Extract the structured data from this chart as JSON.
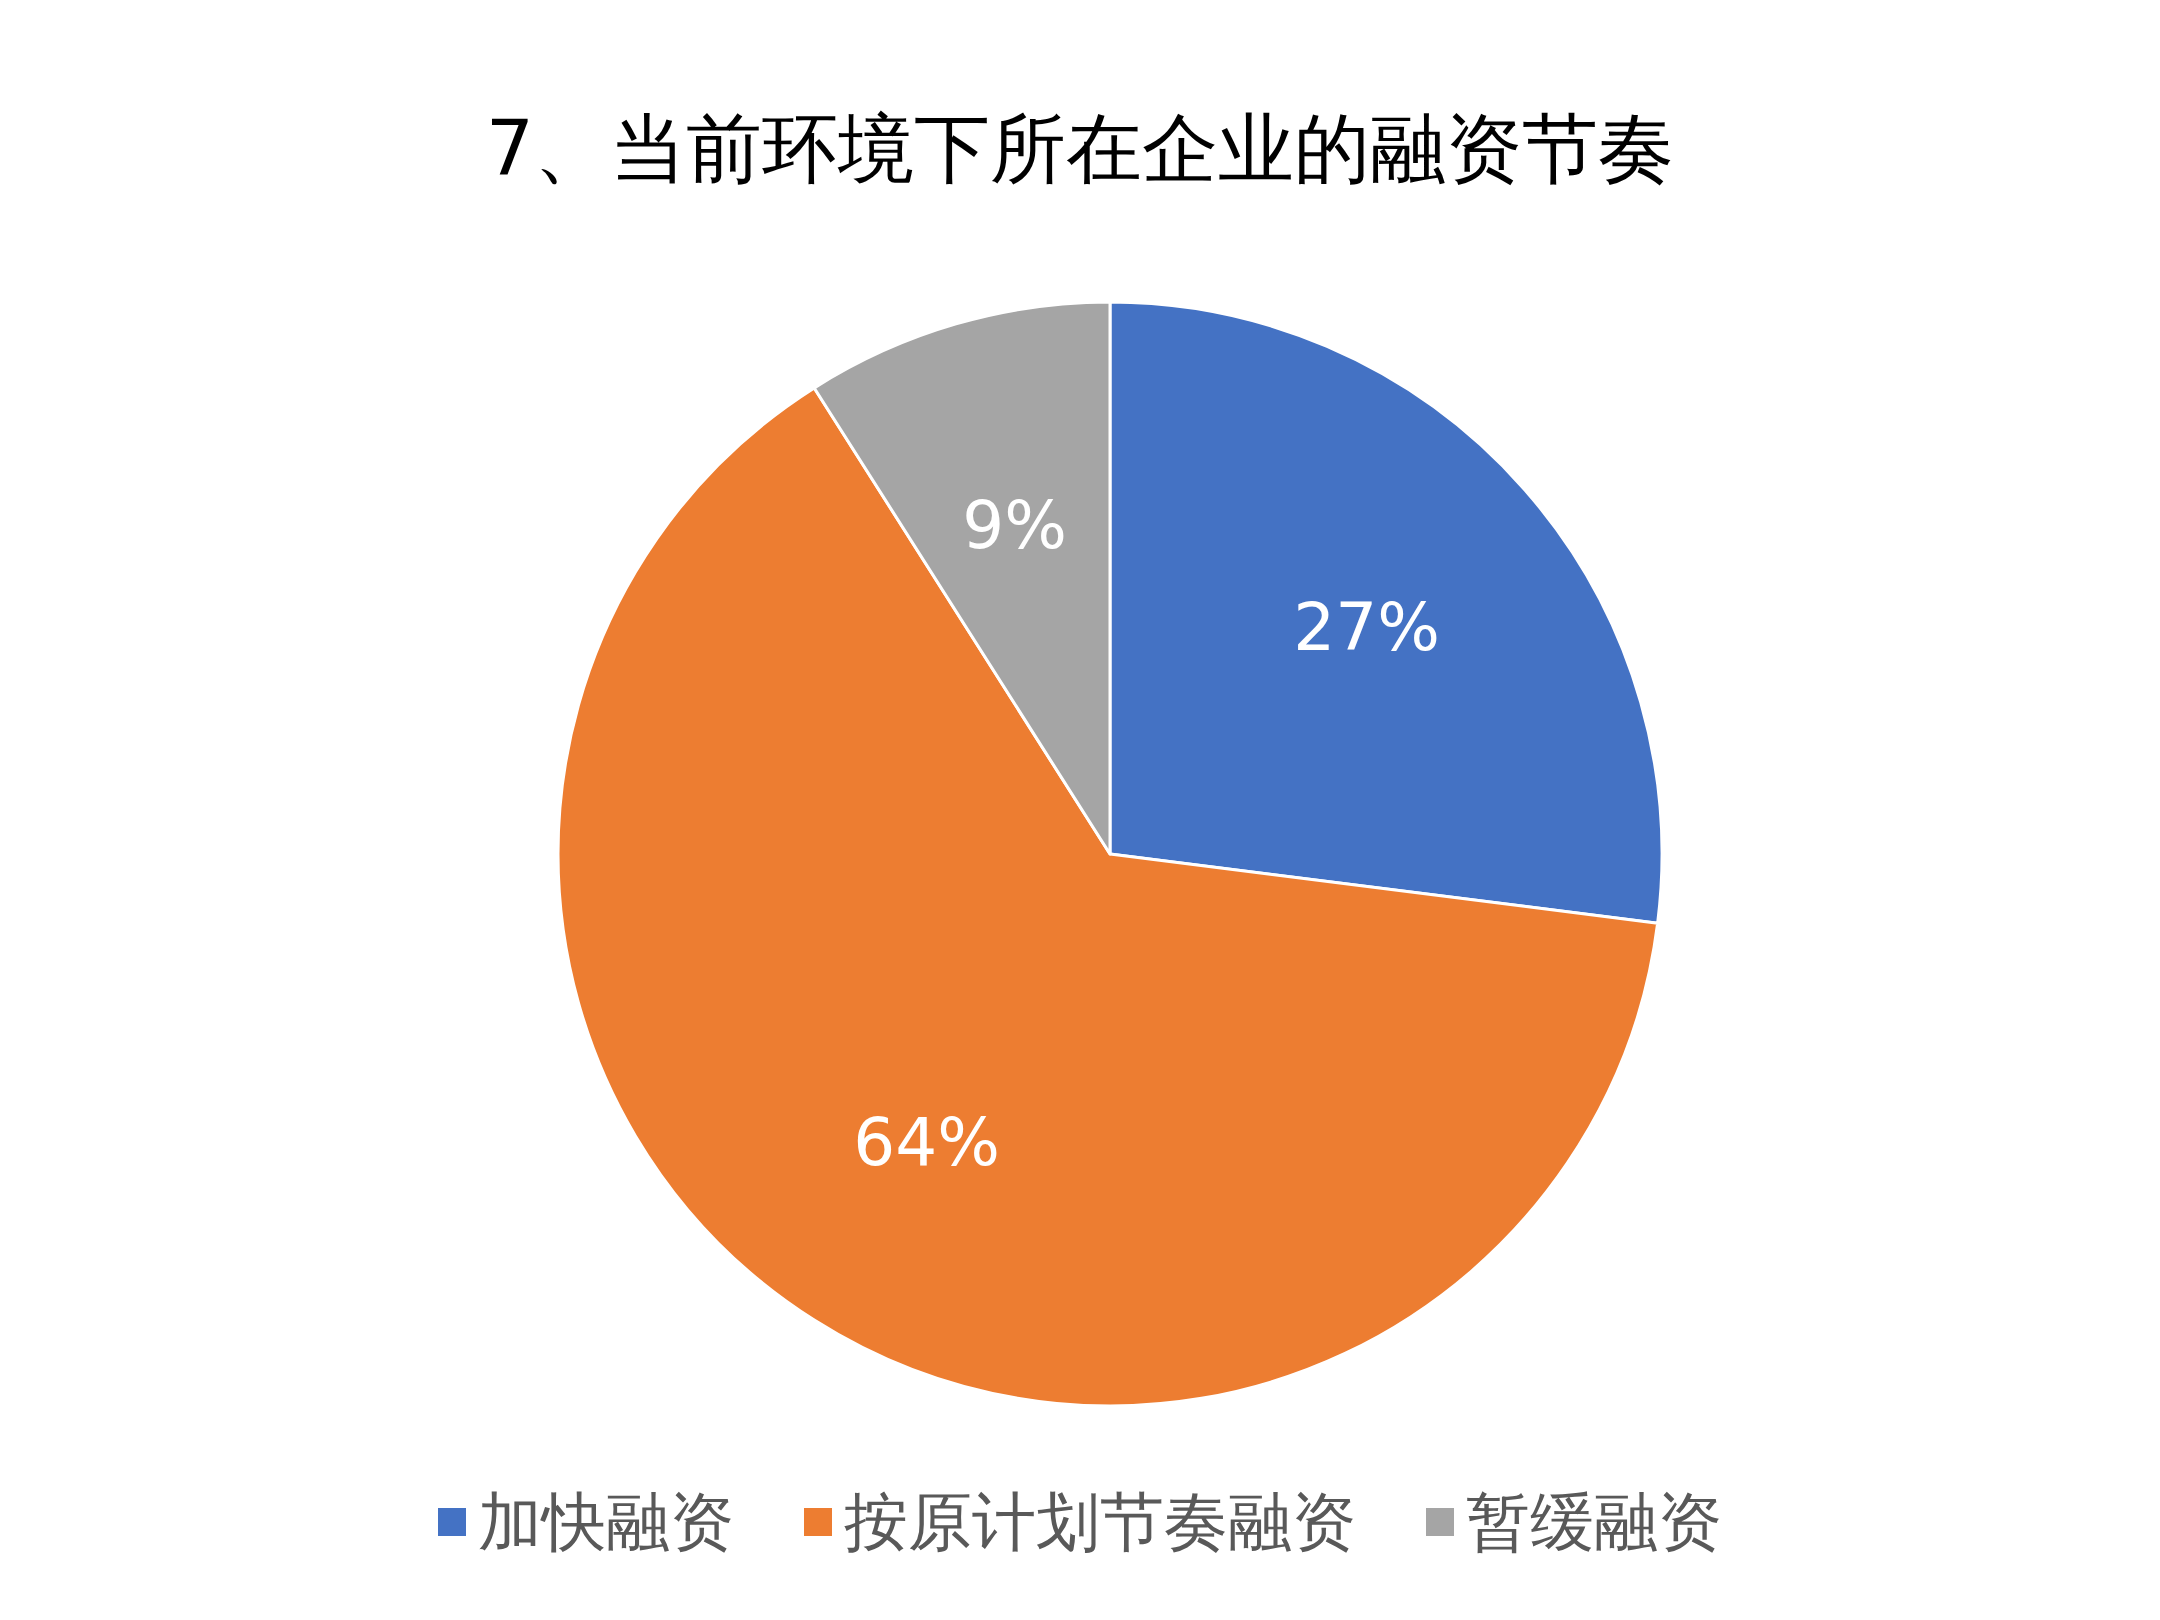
{
  "chart_data": {
    "type": "pie",
    "title": "7、当前环境下所在企业的融资节奏",
    "categories": [
      "加快融资",
      "按原计划节奏融资",
      "暂缓融资"
    ],
    "values": [
      27,
      64,
      9
    ],
    "colors": [
      "#4472c4",
      "#ed7d31",
      "#a5a5a5"
    ],
    "value_labels": [
      "27%",
      "64%",
      "9%"
    ],
    "legend": "bottom"
  }
}
